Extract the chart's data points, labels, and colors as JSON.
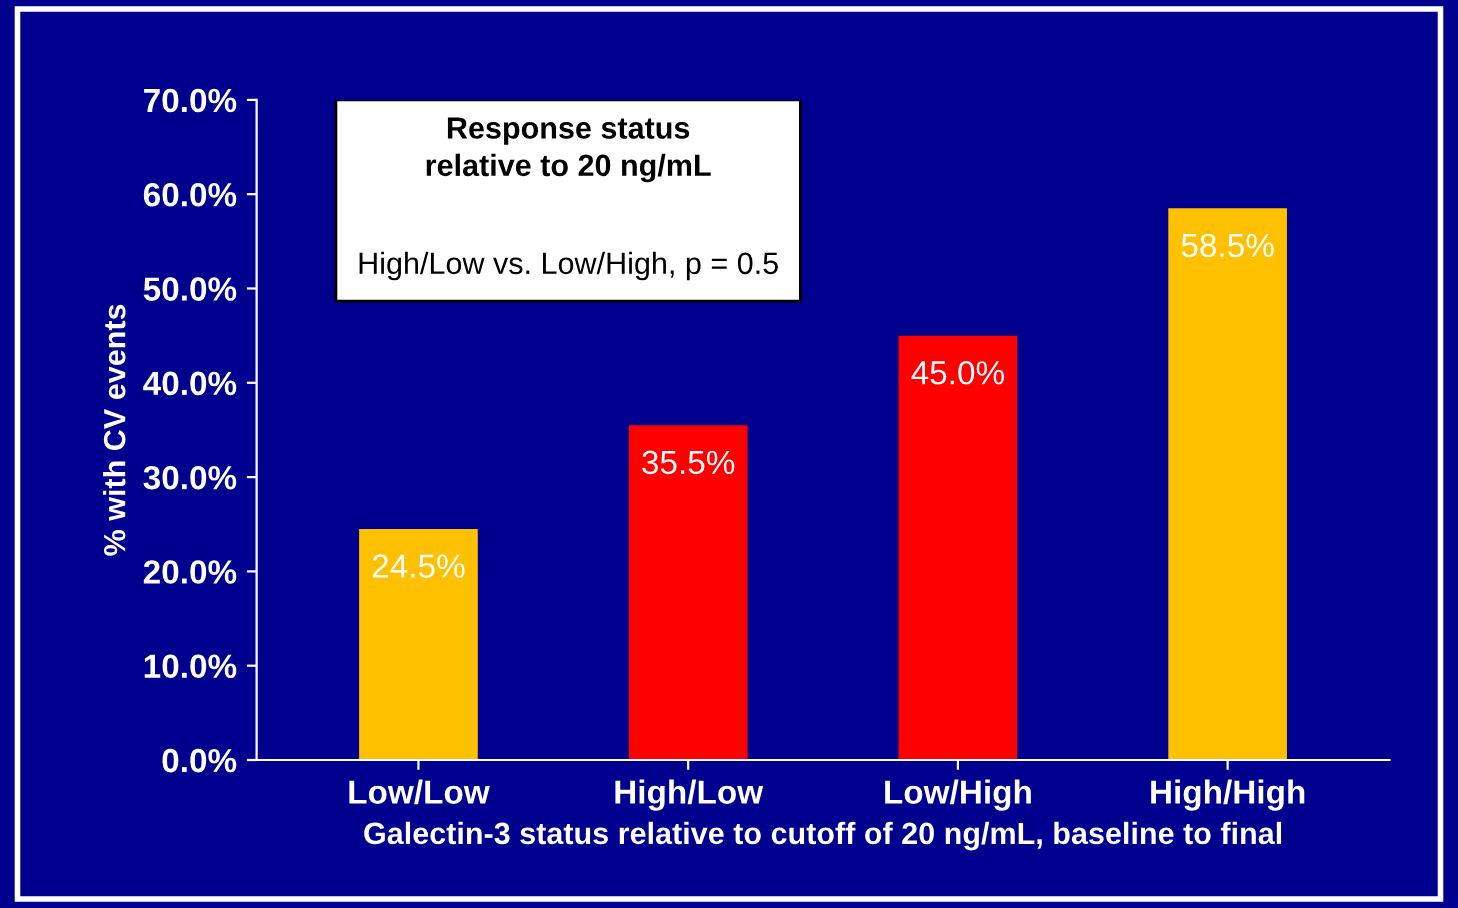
{
  "chart_data": {
    "type": "bar",
    "xlabel": "Galectin-3 status relative to cutoff of 20 ng/mL, baseline to final",
    "ylabel": "% with CV events",
    "categories": [
      "Low/Low",
      "High/Low",
      "Low/High",
      "High/High"
    ],
    "values": [
      24.5,
      35.5,
      45.0,
      58.5
    ],
    "colors": [
      "#ffc000",
      "#ff0000",
      "#ff0000",
      "#ffc000"
    ],
    "value_labels": [
      "24.5%",
      "35.5%",
      "45.0%",
      "58.5%"
    ],
    "ylim": [
      0,
      70
    ],
    "yticks": [
      {
        "value": 0,
        "label": "0.0%"
      },
      {
        "value": 10,
        "label": "10.0%"
      },
      {
        "value": 20,
        "label": "20.0%"
      },
      {
        "value": 30,
        "label": "30.0%"
      },
      {
        "value": 40,
        "label": "40.0%"
      },
      {
        "value": 50,
        "label": "50.0%"
      },
      {
        "value": 60,
        "label": "60.0%"
      },
      {
        "value": 70,
        "label": "70.0%"
      }
    ],
    "annotations": [
      "Response status\nrelative to 20 ng/mL",
      "High/Low vs. Low/High, p = 0.5"
    ],
    "grid": false
  }
}
